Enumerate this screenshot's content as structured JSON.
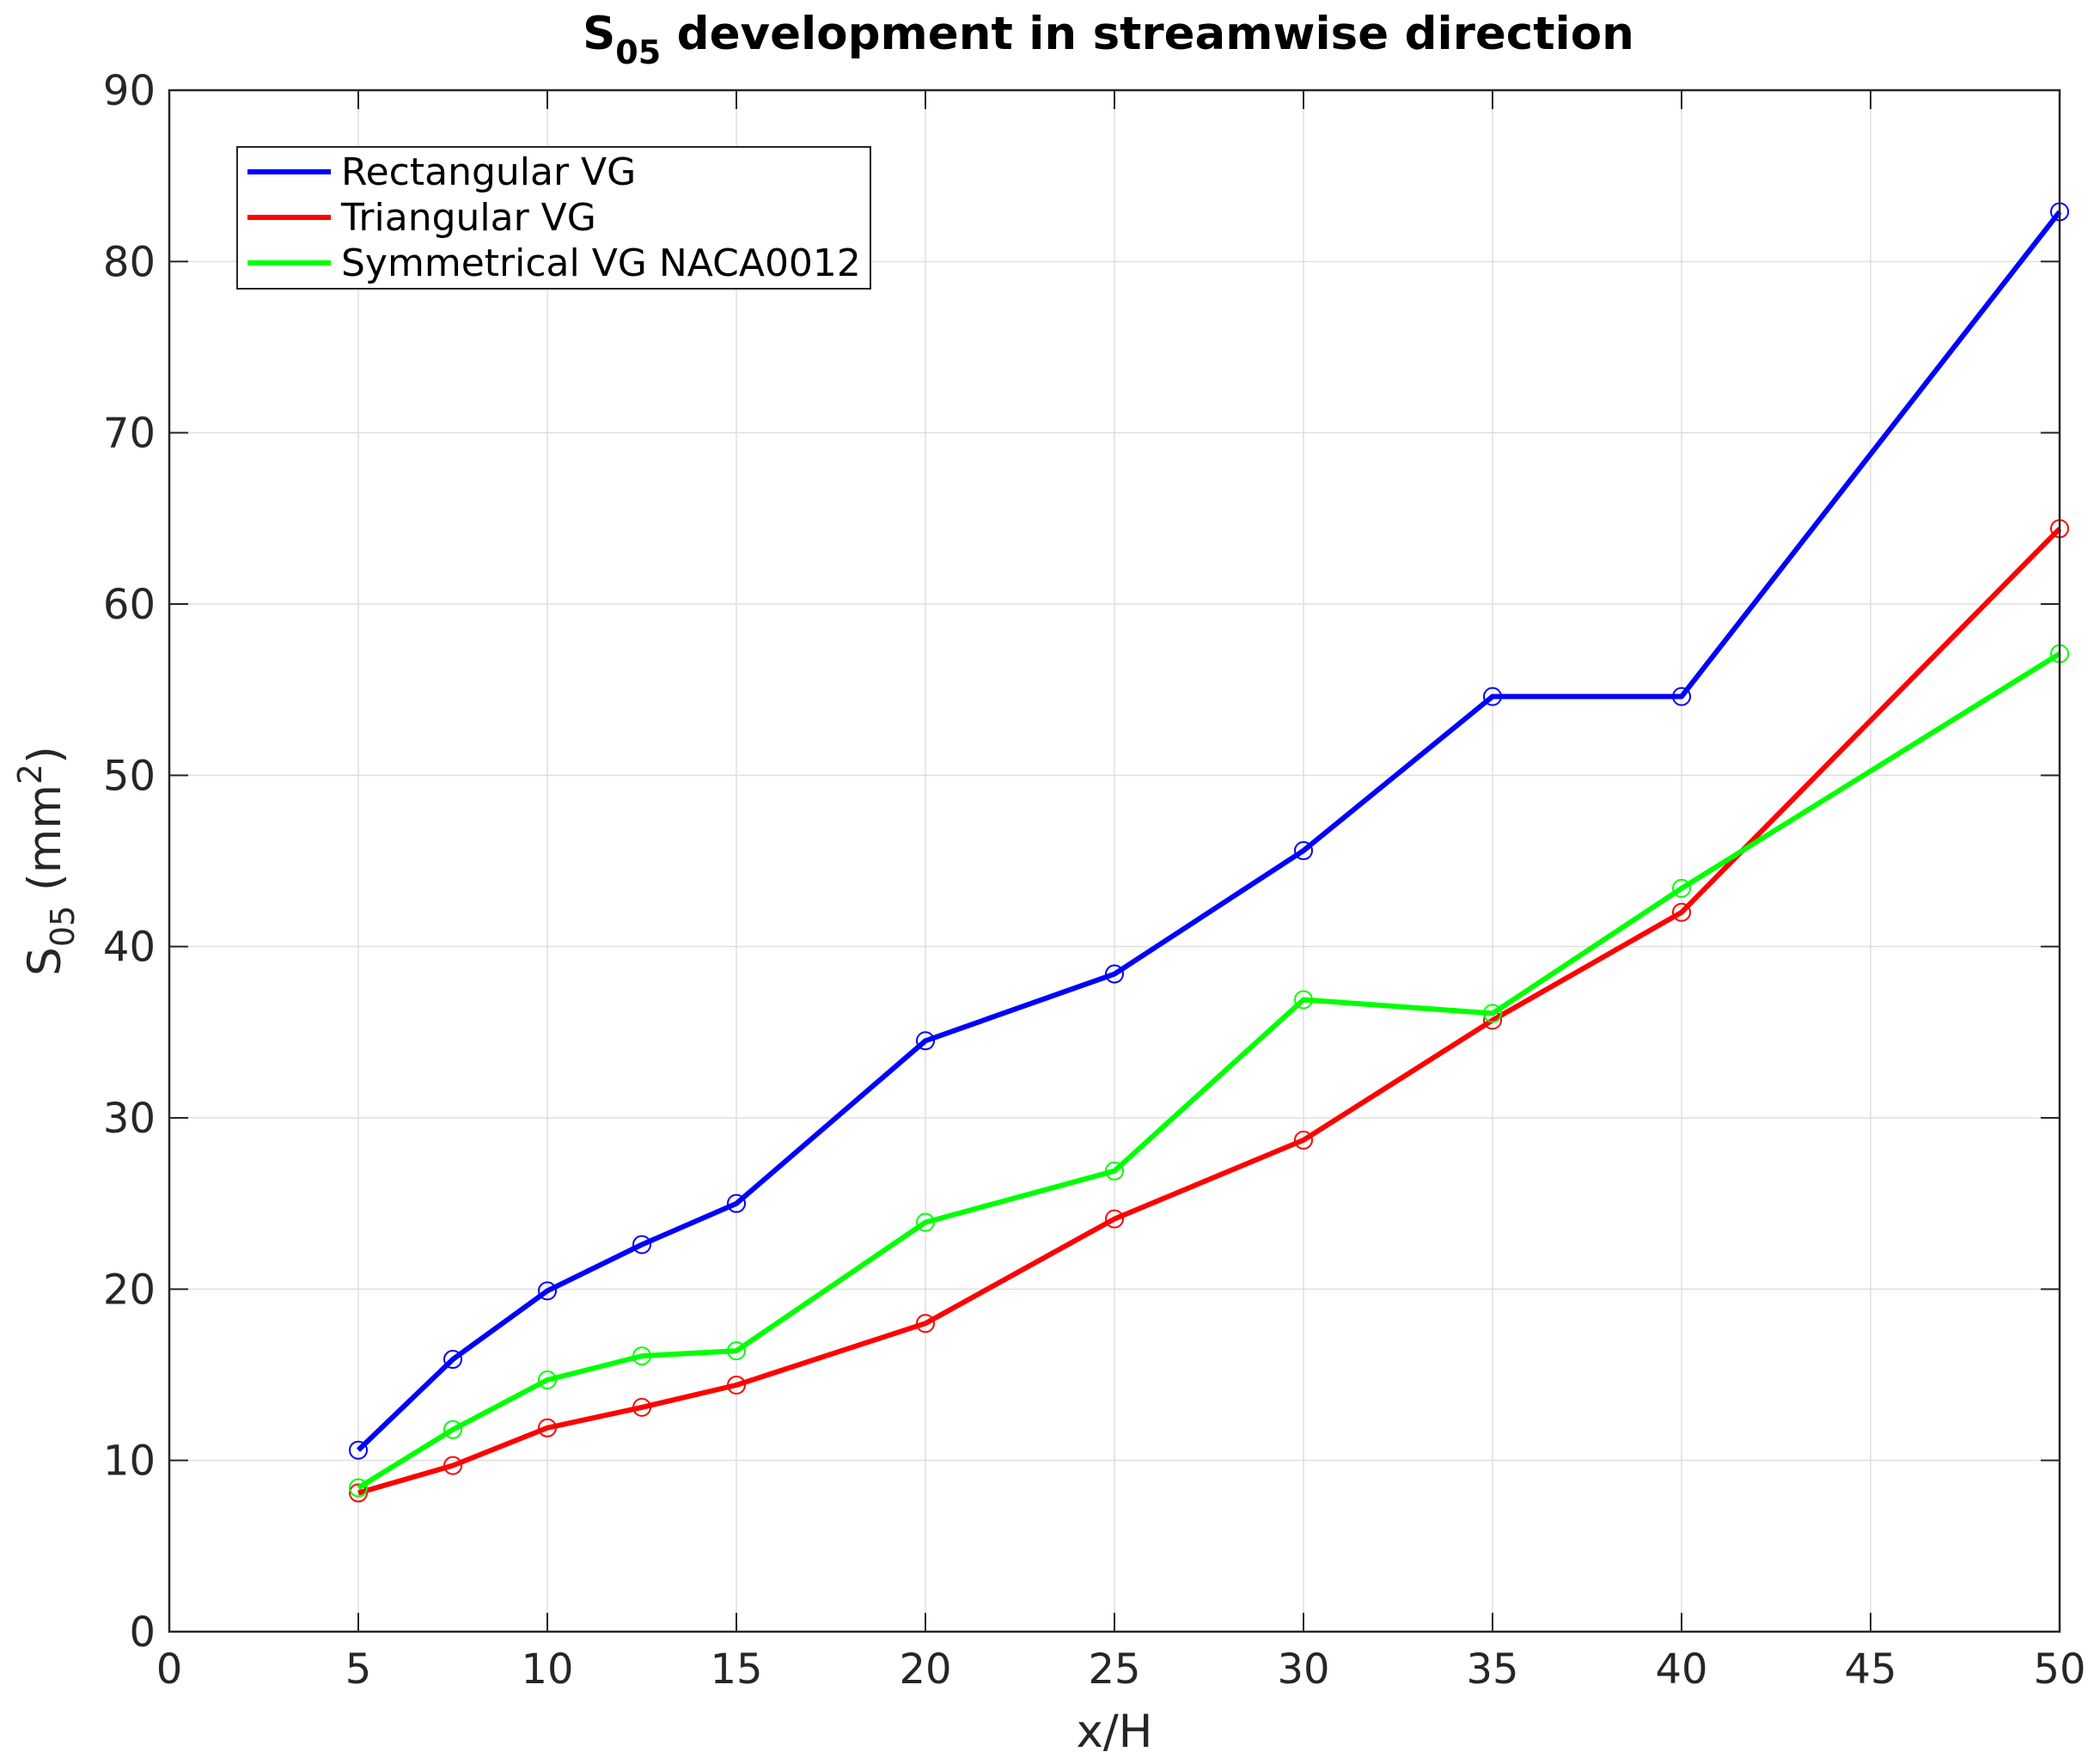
{
  "chart_data": {
    "type": "line",
    "title": {
      "main": "S",
      "sub": "05",
      "rest": " development in streamwise direction"
    },
    "xlabel": "x/H",
    "ylabel": {
      "main": "S",
      "sub": "05",
      "rest": " (mm",
      "sup": "2",
      "close": ")"
    },
    "xlim": [
      0,
      50
    ],
    "ylim": [
      0,
      90
    ],
    "xticks": [
      0,
      5,
      10,
      15,
      20,
      25,
      30,
      35,
      40,
      45,
      50
    ],
    "yticks": [
      0,
      10,
      20,
      30,
      40,
      50,
      60,
      70,
      80,
      90
    ],
    "grid": true,
    "legend_position": "top-left",
    "marker": "circle",
    "series": [
      {
        "name": "Rectangular VG",
        "color": "#0000ff",
        "x": [
          5,
          7.5,
          10,
          12.5,
          15,
          20,
          25,
          30,
          35,
          40,
          50
        ],
        "y": [
          10.6,
          15.9,
          19.9,
          22.6,
          25.0,
          34.5,
          38.4,
          45.6,
          54.6,
          54.6,
          82.9
        ]
      },
      {
        "name": "Triangular VG",
        "color": "#ff0000",
        "x": [
          5,
          7.5,
          10,
          12.5,
          15,
          20,
          25,
          30,
          35,
          40,
          50
        ],
        "y": [
          8.1,
          9.7,
          11.9,
          13.1,
          14.4,
          18.0,
          24.1,
          28.7,
          35.7,
          42.0,
          64.4
        ]
      },
      {
        "name": "Symmetrical VG NACA0012",
        "color": "#00ff00",
        "x": [
          5,
          7.5,
          10,
          12.5,
          15,
          20,
          25,
          30,
          35,
          40,
          50
        ],
        "y": [
          8.4,
          11.8,
          14.7,
          16.1,
          16.4,
          23.9,
          26.9,
          36.9,
          36.1,
          43.4,
          57.1
        ]
      }
    ]
  }
}
